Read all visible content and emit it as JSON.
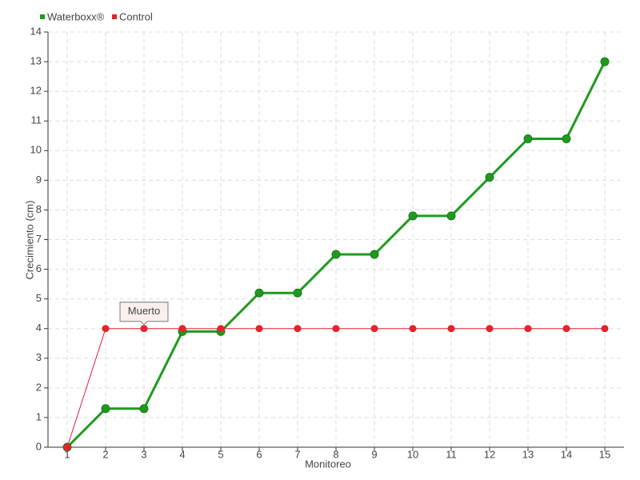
{
  "chart_data": {
    "type": "line",
    "x_label": "Monitoreo",
    "y_label": "Crecimiento (cm)",
    "categories": [
      "1",
      "2",
      "3",
      "4",
      "5",
      "6",
      "7",
      "8",
      "9",
      "10",
      "11",
      "12",
      "13",
      "14",
      "15"
    ],
    "series": [
      {
        "name": "Waterboxx®",
        "color": "#1f9a1f",
        "values": [
          0,
          1.3,
          1.3,
          3.9,
          3.9,
          5.2,
          5.2,
          6.5,
          6.5,
          7.8,
          7.8,
          9.1,
          10.4,
          10.4,
          13
        ]
      },
      {
        "name": "Control",
        "color": "#e8212b",
        "values": [
          0,
          4,
          4,
          4,
          4,
          4,
          4,
          4,
          4,
          4,
          4,
          4,
          4,
          4,
          4
        ]
      }
    ],
    "ylim": [
      0,
      14
    ],
    "yticks": [
      0,
      1,
      2,
      3,
      4,
      5,
      6,
      7,
      8,
      9,
      10,
      11,
      12,
      13,
      14
    ],
    "grid": true,
    "legend": "top-left",
    "annotations": [
      {
        "text": "Muerto",
        "x": "3",
        "y": 4
      }
    ]
  }
}
